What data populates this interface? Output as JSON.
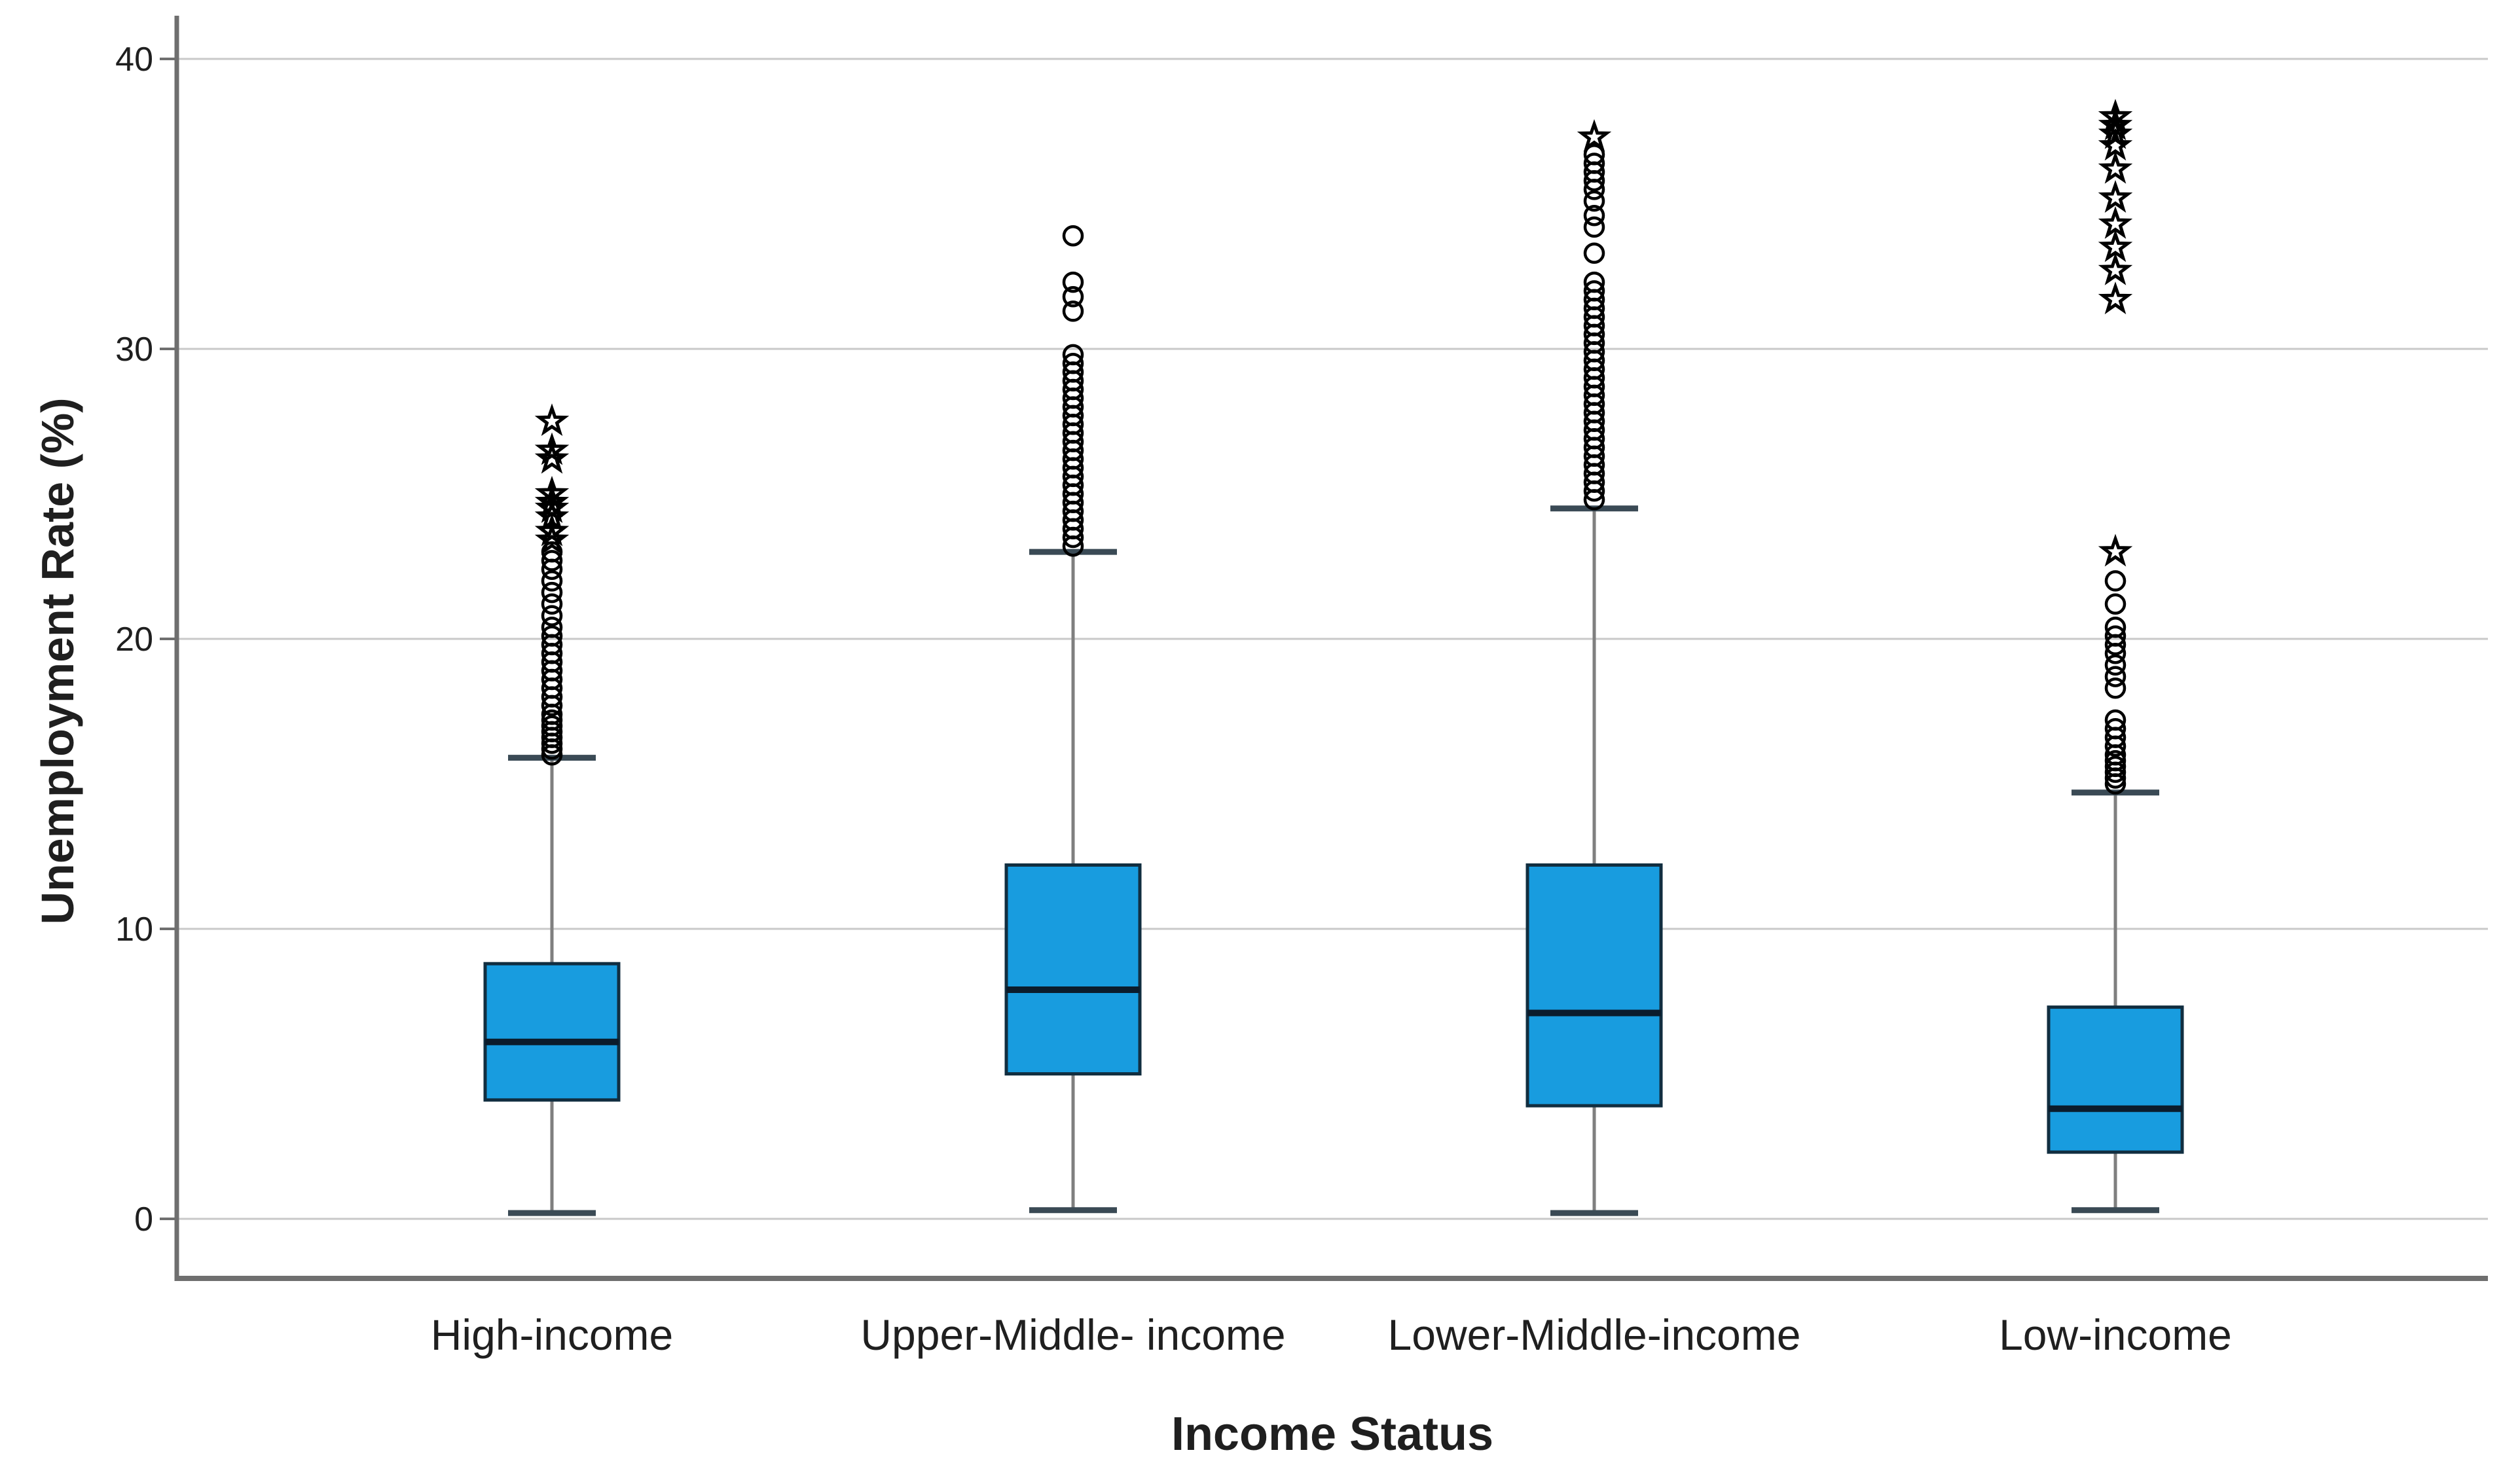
{
  "chart_data": {
    "type": "boxplot",
    "title": "",
    "xlabel": "Income Status",
    "ylabel": "Unemployment Rate (%)",
    "yticks": [
      0,
      10,
      20,
      30,
      40
    ],
    "ylim": [
      -2,
      42
    ],
    "grid": true,
    "legend": "none",
    "categories": [
      "High-income",
      "Upper-Middle- income",
      "Lower-Middle-income",
      "Low-income"
    ],
    "series": [
      {
        "name": "High-income",
        "whisker_low": 0.2,
        "q1": 4.1,
        "median": 6.1,
        "q3": 8.8,
        "whisker_high": 15.9,
        "outliers_circles": [
          16.0,
          16.2,
          16.4,
          16.6,
          16.8,
          17.0,
          17.2,
          17.4,
          17.7,
          18.0,
          18.3,
          18.6,
          18.9,
          19.2,
          19.5,
          19.8,
          20.1,
          20.4,
          20.8,
          21.2,
          21.6,
          22.0,
          22.4,
          22.7,
          23.0
        ],
        "outliers_stars": [
          23.4,
          23.7,
          24.2,
          24.5,
          24.7,
          25.0,
          26.2,
          26.5,
          27.5
        ]
      },
      {
        "name": "Upper-Middle- income",
        "whisker_low": 0.3,
        "q1": 5.0,
        "median": 7.9,
        "q3": 12.2,
        "whisker_high": 23.0,
        "outliers_circles": [
          23.2,
          23.5,
          23.8,
          24.1,
          24.4,
          24.7,
          25.0,
          25.3,
          25.6,
          25.9,
          26.2,
          26.5,
          26.8,
          27.1,
          27.4,
          27.7,
          28.0,
          28.3,
          28.6,
          28.9,
          29.2,
          29.5,
          29.8,
          31.3,
          31.8,
          32.3,
          33.9
        ],
        "outliers_stars": []
      },
      {
        "name": "Lower-Middle-income",
        "whisker_low": 0.2,
        "q1": 3.9,
        "median": 7.1,
        "q3": 12.2,
        "whisker_high": 24.5,
        "outliers_circles": [
          24.8,
          25.1,
          25.4,
          25.7,
          26.0,
          26.3,
          26.6,
          26.9,
          27.2,
          27.5,
          27.8,
          28.1,
          28.4,
          28.7,
          29.0,
          29.3,
          29.6,
          29.9,
          30.2,
          30.5,
          30.8,
          31.1,
          31.4,
          31.7,
          32.0,
          32.3,
          33.3,
          34.2,
          34.6,
          35.1,
          35.5,
          35.8,
          36.1,
          36.4,
          36.7
        ],
        "outliers_stars": [
          37.3
        ]
      },
      {
        "name": "Low-income",
        "whisker_low": 0.3,
        "q1": 2.3,
        "median": 3.8,
        "q3": 7.3,
        "whisker_high": 14.7,
        "outliers_circles": [
          15.0,
          15.2,
          15.4,
          15.6,
          15.8,
          16.0,
          16.3,
          16.6,
          16.9,
          17.2,
          18.3,
          18.7,
          19.1,
          19.5,
          19.8,
          20.1,
          20.4,
          21.2,
          22.0
        ],
        "outliers_stars": [
          23.0,
          31.7,
          32.7,
          33.5,
          34.3,
          35.2,
          36.2,
          37.0,
          37.4,
          37.7,
          38.0
        ]
      }
    ],
    "colors": {
      "box_fill": "#189cdf",
      "box_border": "#112e40",
      "median_line": "#0b1c2c",
      "whisker": "#7f7f7f",
      "whisker_cap": "#3a4a55",
      "gridline": "#c9c9c9",
      "axis_line": "#6f6f6f",
      "text": "#1f1f1f",
      "outlier": "#000000",
      "background": "#ffffff"
    }
  }
}
